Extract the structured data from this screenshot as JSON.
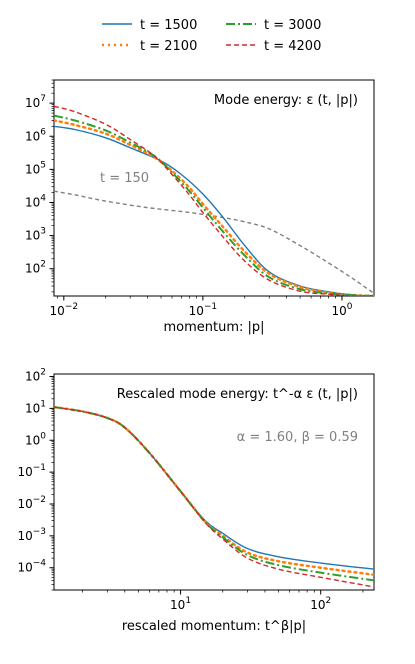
{
  "chart_data": [
    {
      "type": "line",
      "scale": {
        "x": "log",
        "y": "log"
      },
      "title": "Mode energy: ε (t, |p|)",
      "xlabel": "momentum: |p|",
      "ylabel": "",
      "xlim": [
        0.0085,
        1.7
      ],
      "ylim": [
        15,
        50000000
      ],
      "x_ticks": [
        {
          "value": 0.01,
          "label": "10^-2"
        },
        {
          "value": 0.1,
          "label": "10^-1"
        },
        {
          "value": 1,
          "label": "10^0"
        }
      ],
      "y_ticks": [
        {
          "value": 100,
          "label": "10^2"
        },
        {
          "value": 1000,
          "label": "10^3"
        },
        {
          "value": 10000,
          "label": "10^4"
        },
        {
          "value": 100000,
          "label": "10^5"
        },
        {
          "value": 1000000,
          "label": "10^6"
        },
        {
          "value": 10000000,
          "label": "10^7"
        }
      ],
      "annotations": [
        {
          "text": "t = 150",
          "x": 0.018,
          "y": 40000,
          "color": "#808080"
        }
      ],
      "series": [
        {
          "name": "t = 150",
          "color": "#808080",
          "dash": "4,3",
          "in_legend": false,
          "x": [
            0.0085,
            0.012,
            0.02,
            0.04,
            0.08,
            0.14,
            0.2,
            0.3,
            0.5,
            0.8,
            1.2,
            1.7
          ],
          "y": [
            22000,
            17000,
            11000,
            7000,
            5000,
            3500,
            2600,
            1600,
            500,
            150,
            50,
            18
          ]
        },
        {
          "name": "t = 1500",
          "color": "#1f77b4",
          "dash": "",
          "x": [
            0.0085,
            0.012,
            0.02,
            0.03,
            0.05,
            0.07,
            0.1,
            0.14,
            0.2,
            0.3,
            0.5,
            0.8,
            1.2,
            1.7
          ],
          "y": [
            2000000,
            1600000,
            900000,
            450000,
            180000,
            70000,
            18000,
            3500,
            500,
            80,
            30,
            20,
            16,
            15
          ]
        },
        {
          "name": "t = 2100",
          "color": "#ff7f0e",
          "dash": "2,4",
          "x": [
            0.0085,
            0.012,
            0.02,
            0.03,
            0.045,
            0.06,
            0.08,
            0.1,
            0.14,
            0.2,
            0.3,
            0.5,
            0.8,
            1.2,
            1.7
          ],
          "y": [
            3000000,
            2200000,
            1200000,
            550000,
            230000,
            90000,
            28000,
            9000,
            1800,
            330,
            70,
            28,
            19,
            16,
            15
          ]
        },
        {
          "name": "t = 3000",
          "color": "#2ca02c",
          "dash": "9,3,2,3",
          "x": [
            0.0085,
            0.012,
            0.02,
            0.03,
            0.045,
            0.06,
            0.08,
            0.1,
            0.14,
            0.2,
            0.3,
            0.5,
            0.8,
            1.2,
            1.7
          ],
          "y": [
            4200000,
            3000000,
            1500000,
            650000,
            250000,
            80000,
            22000,
            7000,
            1300,
            250,
            55,
            24,
            18,
            16,
            15
          ]
        },
        {
          "name": "t = 4200",
          "color": "#d62728",
          "dash": "5,3",
          "x": [
            0.0085,
            0.012,
            0.02,
            0.03,
            0.045,
            0.06,
            0.08,
            0.1,
            0.14,
            0.2,
            0.3,
            0.5,
            0.8,
            1.2,
            1.7
          ],
          "y": [
            8000000,
            5500000,
            2300000,
            800000,
            250000,
            70000,
            17000,
            5000,
            900,
            170,
            45,
            21,
            17,
            15,
            15
          ]
        }
      ]
    },
    {
      "type": "line",
      "scale": {
        "x": "log",
        "y": "log"
      },
      "title": "Rescaled mode energy: t^-α ε (t, |p|)",
      "xlabel": "rescaled momentum: t^β|p|",
      "ylabel": "",
      "xlim": [
        1.25,
        240
      ],
      "ylim": [
        2e-05,
        120
      ],
      "x_ticks": [
        {
          "value": 10,
          "label": "10^1"
        },
        {
          "value": 100,
          "label": "10^2"
        }
      ],
      "y_ticks": [
        {
          "value": 0.0001,
          "label": "10^-4"
        },
        {
          "value": 0.001,
          "label": "10^-3"
        },
        {
          "value": 0.01,
          "label": "10^-2"
        },
        {
          "value": 0.1,
          "label": "10^-1"
        },
        {
          "value": 1,
          "label": "10^0"
        },
        {
          "value": 10,
          "label": "10^1"
        },
        {
          "value": 100,
          "label": "10^2"
        }
      ],
      "annotations": [
        {
          "text": "α = 1.60, β = 0.59",
          "x": 100,
          "y": 1,
          "color": "#808080"
        }
      ],
      "series": [
        {
          "name": "t = 1500",
          "color": "#1f77b4",
          "dash": "",
          "x": [
            1.25,
            2,
            3,
            4,
            6,
            10,
            15,
            20,
            30,
            50,
            100,
            240
          ],
          "y": [
            11,
            8,
            5,
            2.5,
            0.4,
            0.025,
            0.003,
            0.0012,
            0.0004,
            0.00022,
            0.00014,
            9e-05
          ]
        },
        {
          "name": "t = 2100",
          "color": "#ff7f0e",
          "dash": "2,4",
          "x": [
            1.25,
            2,
            3,
            4,
            6,
            10,
            15,
            20,
            30,
            50,
            100,
            240
          ],
          "y": [
            11,
            8,
            5,
            2.5,
            0.4,
            0.025,
            0.0028,
            0.001,
            0.0003,
            0.00016,
            0.0001,
            6e-05
          ]
        },
        {
          "name": "t = 3000",
          "color": "#2ca02c",
          "dash": "9,3,2,3",
          "x": [
            1.25,
            2,
            3,
            4,
            6,
            10,
            15,
            20,
            30,
            50,
            100,
            240
          ],
          "y": [
            11,
            8,
            5,
            2.5,
            0.4,
            0.025,
            0.0027,
            0.0009,
            0.00025,
            0.00012,
            7e-05,
            4e-05
          ]
        },
        {
          "name": "t = 4200",
          "color": "#d62728",
          "dash": "5,3",
          "x": [
            1.25,
            2,
            3,
            4,
            6,
            10,
            15,
            20,
            30,
            50,
            100,
            240
          ],
          "y": [
            11,
            8,
            5,
            2.5,
            0.4,
            0.025,
            0.0026,
            0.0008,
            0.0002,
            9e-05,
            5e-05,
            2.5e-05
          ]
        }
      ]
    }
  ]
}
